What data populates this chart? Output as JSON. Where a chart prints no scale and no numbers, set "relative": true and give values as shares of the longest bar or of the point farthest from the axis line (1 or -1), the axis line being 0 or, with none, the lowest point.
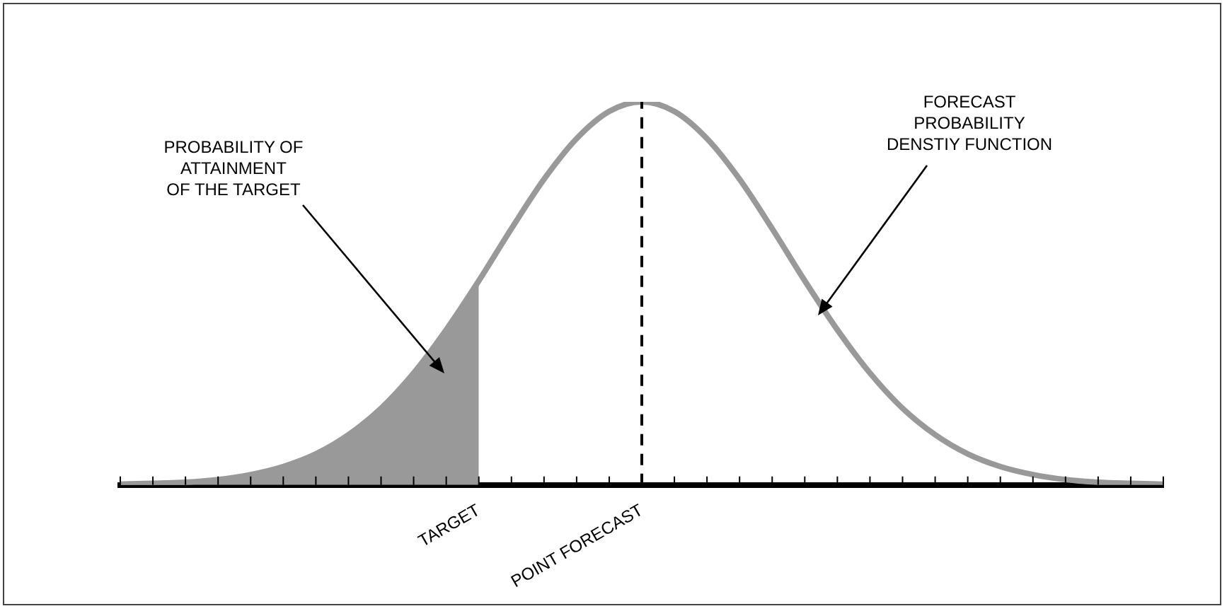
{
  "chart_data": {
    "type": "line",
    "relative": true,
    "legend": false,
    "grid": false,
    "marker": "none",
    "categories": [
      null,
      null,
      null,
      null,
      null,
      null,
      null,
      null,
      null,
      null,
      null,
      "TARGET",
      null,
      null,
      null,
      null,
      "POINT FORECAST",
      null,
      null,
      null,
      null,
      null,
      null,
      null,
      null,
      null,
      null,
      null,
      null,
      null,
      null,
      null,
      null
    ],
    "series": [
      {
        "color": "#999999",
        "values": [
          0.002,
          0.004,
          0.007,
          0.014,
          0.027,
          0.048,
          0.081,
          0.131,
          0.2,
          0.292,
          0.405,
          0.533,
          0.669,
          0.798,
          0.904,
          0.975,
          1,
          0.975,
          0.904,
          0.798,
          0.669,
          0.533,
          0.405,
          0.292,
          0.2,
          0.131,
          0.081,
          0.048,
          0.027,
          0.014,
          0.007,
          0.004,
          0.002
        ]
      },
      {
        "type": "area",
        "color": "#999999",
        "values": [
          0.002,
          0.004,
          0.007,
          0.014,
          0.027,
          0.048,
          0.081,
          0.131,
          0.2,
          0.292,
          0.405,
          0.533,
          null,
          null,
          null,
          null,
          null,
          null,
          null,
          null,
          null,
          null,
          null,
          null,
          null,
          null,
          null,
          null,
          null,
          null,
          null,
          null,
          null
        ]
      }
    ],
    "ref_lines": [
      {
        "axis": "x",
        "value": "POINT FORECAST",
        "color": "#000000",
        "line_style": "dashed"
      }
    ],
    "annotations": [
      "PROBABILITY OF\nATTAINMENT\nOF THE TARGET",
      "FORECAST\nPROBABILITY\nDENSTIY FUNCTION"
    ]
  }
}
